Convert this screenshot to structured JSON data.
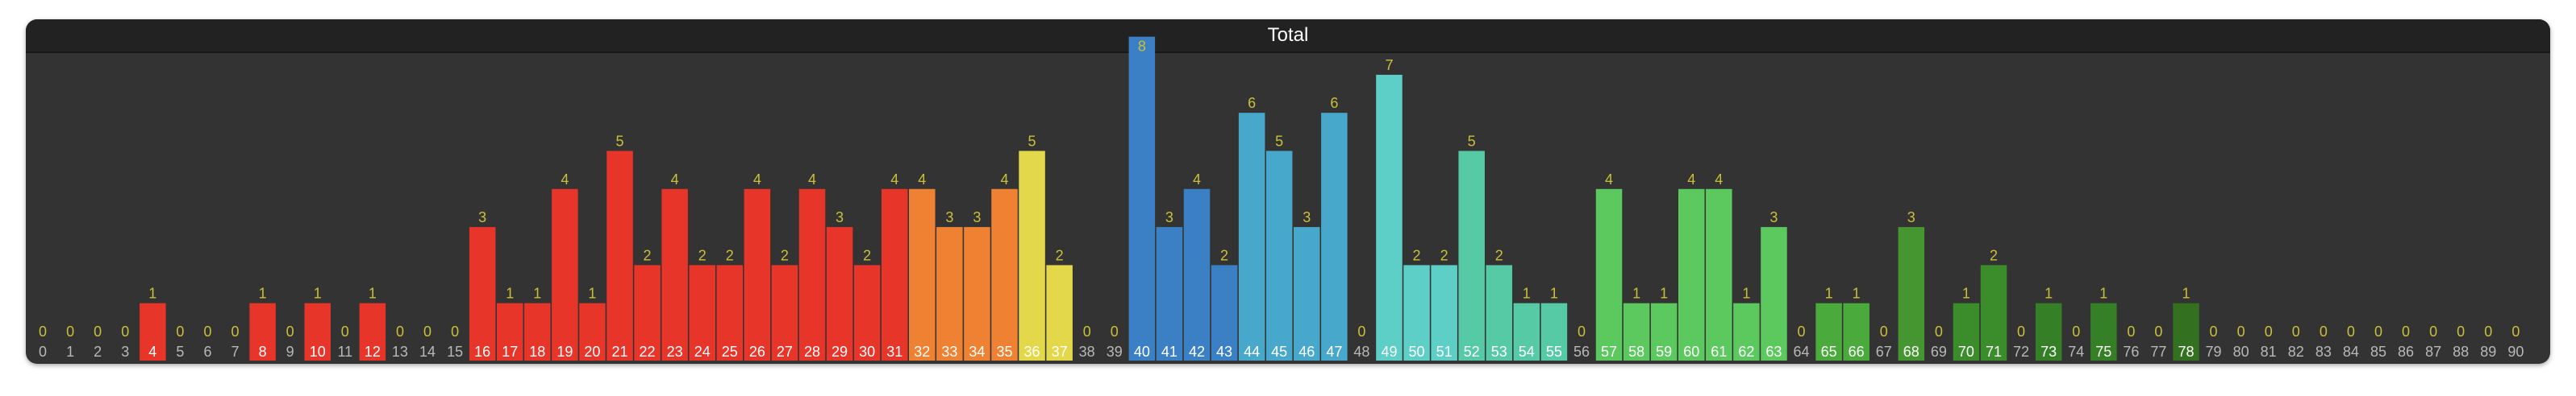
{
  "chart_data": {
    "type": "bar",
    "title": "Total",
    "xlabel": "",
    "ylabel": "",
    "ylim": [
      0,
      8
    ],
    "grid": false,
    "legend": "none",
    "categories": [
      "0",
      "1",
      "2",
      "3",
      "4",
      "5",
      "6",
      "7",
      "8",
      "9",
      "10",
      "11",
      "12",
      "13",
      "14",
      "15",
      "16",
      "17",
      "18",
      "19",
      "20",
      "21",
      "22",
      "23",
      "24",
      "25",
      "26",
      "27",
      "28",
      "29",
      "30",
      "31",
      "32",
      "33",
      "34",
      "35",
      "36",
      "37",
      "38",
      "39",
      "40",
      "41",
      "42",
      "43",
      "44",
      "45",
      "46",
      "47",
      "48",
      "49",
      "50",
      "51",
      "52",
      "53",
      "54",
      "55",
      "56",
      "57",
      "58",
      "59",
      "60",
      "61",
      "62",
      "63",
      "64",
      "65",
      "66",
      "67",
      "68",
      "69",
      "70",
      "71",
      "72",
      "73",
      "74",
      "75",
      "76",
      "77",
      "78",
      "79",
      "80",
      "81",
      "82",
      "83",
      "84",
      "85",
      "86",
      "87",
      "88",
      "89",
      "90"
    ],
    "values": [
      0,
      0,
      0,
      0,
      1,
      0,
      0,
      0,
      1,
      0,
      1,
      0,
      1,
      0,
      0,
      0,
      3,
      1,
      1,
      4,
      1,
      5,
      2,
      4,
      2,
      2,
      4,
      2,
      4,
      3,
      2,
      4,
      4,
      3,
      3,
      4,
      5,
      2,
      0,
      0,
      8,
      3,
      4,
      2,
      6,
      5,
      3,
      6,
      0,
      7,
      2,
      2,
      5,
      2,
      1,
      1,
      0,
      4,
      1,
      1,
      4,
      4,
      1,
      3,
      0,
      1,
      1,
      0,
      3,
      0,
      1,
      2,
      0,
      1,
      0,
      1,
      0,
      0,
      1,
      0,
      0,
      0,
      0,
      0,
      0,
      0,
      0,
      0,
      0,
      0,
      0
    ],
    "colors": [
      "#ffffff",
      "#ffffff",
      "#ffffff",
      "#ffffff",
      "#e8352a",
      "#ffffff",
      "#ffffff",
      "#ffffff",
      "#e8352a",
      "#ffffff",
      "#e8352a",
      "#ffffff",
      "#e8352a",
      "#ffffff",
      "#ffffff",
      "#ffffff",
      "#e8352a",
      "#e8352a",
      "#e8352a",
      "#e8352a",
      "#e8352a",
      "#e8352a",
      "#e8352a",
      "#e8352a",
      "#e8352a",
      "#e8352a",
      "#e8352a",
      "#e8352a",
      "#e8352a",
      "#e8352a",
      "#e8352a",
      "#e8352a",
      "#ef8232",
      "#ef8232",
      "#ef8232",
      "#ef8232",
      "#e3d84a",
      "#e3d84a",
      "#ffffff",
      "#ffffff",
      "#3b7fc4",
      "#3b7fc4",
      "#3b7fc4",
      "#3b7fc4",
      "#48a8cc",
      "#48a8cc",
      "#48a8cc",
      "#48a8cc",
      "#ffffff",
      "#5dcfc7",
      "#5dcfc7",
      "#5dcfc7",
      "#56c9a5",
      "#56c9a5",
      "#56c9a5",
      "#56c9a5",
      "#ffffff",
      "#5cc95e",
      "#5cc95e",
      "#5cc95e",
      "#5cc95e",
      "#5cc95e",
      "#5cc95e",
      "#5cc95e",
      "#ffffff",
      "#4aab3c",
      "#4aab3c",
      "#ffffff",
      "#459530",
      "#ffffff",
      "#3b8d2c",
      "#3b8d2c",
      "#ffffff",
      "#357f27",
      "#ffffff",
      "#357f27",
      "#ffffff",
      "#ffffff",
      "#33701f",
      "#ffffff",
      "#ffffff",
      "#ffffff",
      "#ffffff",
      "#ffffff",
      "#ffffff",
      "#ffffff",
      "#ffffff",
      "#ffffff",
      "#ffffff",
      "#ffffff",
      "#ffffff"
    ]
  }
}
